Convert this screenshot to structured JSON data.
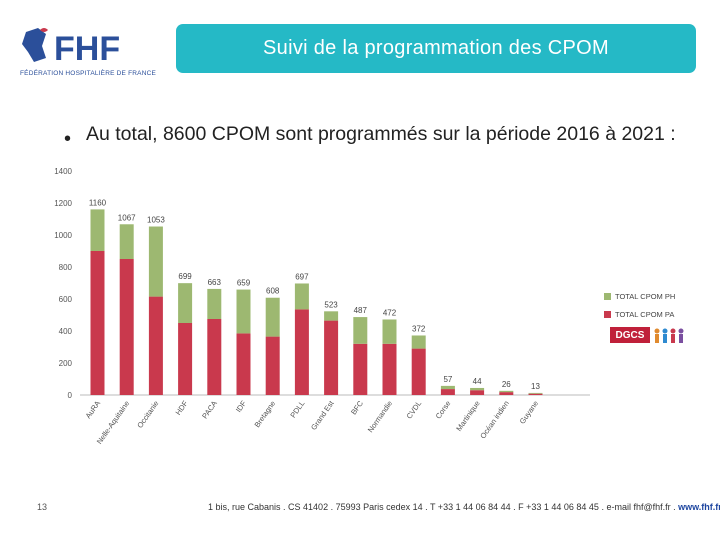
{
  "header": {
    "logo_text": "FHF",
    "logo_subtitle": "FÉDÉRATION HOSPITALIÈRE DE FRANCE",
    "title": "Suivi de la programmation des CPOM"
  },
  "content": {
    "headline": "Au total, 8600 CPOM sont programmés sur la période 2016 à 2021 :"
  },
  "colors": {
    "accent": "#25b9c6",
    "ph": "#9db871",
    "pa": "#c9394d",
    "brand": "#2b4f9a"
  },
  "chart_data": {
    "type": "bar",
    "stacked": true,
    "categories": [
      "AuRA",
      "Nelle-Aquitaine",
      "Occitanie",
      "HDF",
      "PACA",
      "IDF",
      "Bretagne",
      "PDLL",
      "Grand Est",
      "BFC",
      "Normandie",
      "CVDL",
      "Corse",
      "Martinique",
      "Océan indien",
      "Guyane"
    ],
    "totals": [
      1160,
      1067,
      1053,
      699,
      663,
      659,
      608,
      697,
      523,
      487,
      472,
      372,
      57,
      44,
      26,
      13
    ],
    "series": [
      {
        "name": "TOTAL CPOM PA",
        "values": [
          900,
          850,
          615,
          450,
          475,
          385,
          365,
          535,
          465,
          320,
          320,
          290,
          37,
          30,
          18,
          8
        ]
      },
      {
        "name": "TOTAL CPOM PH",
        "values": [
          260,
          217,
          438,
          249,
          188,
          274,
          243,
          162,
          58,
          167,
          152,
          82,
          20,
          14,
          8,
          5
        ]
      }
    ],
    "ylim": [
      0,
      1400
    ],
    "yticks": [
      0,
      200,
      400,
      600,
      800,
      1000,
      1200,
      1400
    ],
    "legend": [
      {
        "label": "TOTAL CPOM PH"
      },
      {
        "label": "TOTAL CPOM PA"
      }
    ],
    "legend_position": "right",
    "grid": false
  },
  "badge": {
    "label": "DGCS"
  },
  "footer": {
    "address": "1 bis, rue Cabanis . CS 41402 . 75993 Paris cedex 14 . T +33 1 44 06 84 44 . F +33 1 44 06 84 45 . e-mail fhf@fhf.fr . ",
    "url": "www.fhf.fr",
    "page_number": "13"
  }
}
